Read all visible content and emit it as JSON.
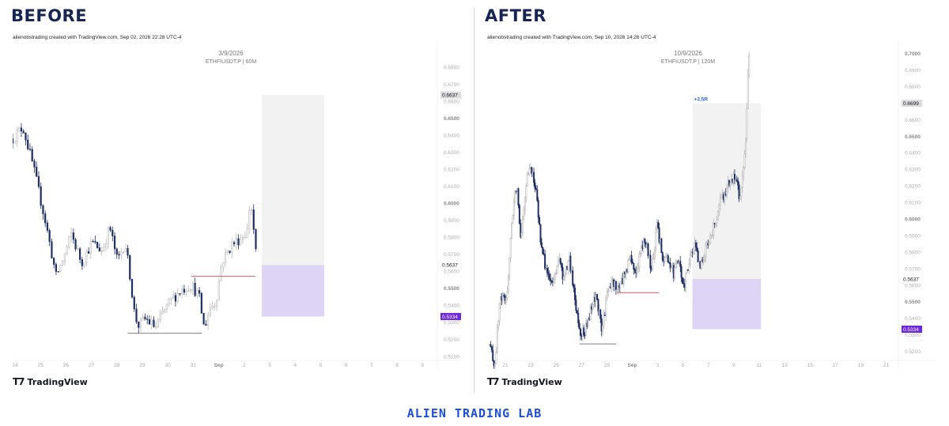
{
  "before": {
    "heading": "BEFORE",
    "credit": "alienobstrading created with TradingView.com, Sep 02, 2026 22:28 UTC-4",
    "brand": "TradingView"
  },
  "after": {
    "heading": "AFTER",
    "credit": "alienobstrading created with TradingView.com, Sep 10, 2026 14:26 UTC-4",
    "brand": "TradingView"
  },
  "footer": "ALIEN TRADING LAB",
  "colors": {
    "up": "#b8b8b8",
    "down": "#1e2f63",
    "profit_zone": "#e8e8e8",
    "stop_zone": "#d8cdf4",
    "entry_line": "#e05a5a",
    "stop_label": "#6d28d9",
    "heading": "#172554",
    "footer": "#1d4ed8"
  },
  "chart_data": [
    {
      "type": "candlestick",
      "title": "3/9/2026",
      "subtitle": "ETHFIUSDT.P | 60M",
      "x_ticks": [
        "24",
        "25",
        "26",
        "27",
        "28",
        "29",
        "30",
        "31",
        "Sep",
        "2",
        "3",
        "4",
        "5",
        "6",
        "7",
        "8",
        "9"
      ],
      "y_ticks": [
        "0.6800",
        "0.6700",
        "0.6600",
        "0.6500",
        "0.6400",
        "0.6300",
        "0.6200",
        "0.6100",
        "0.6000",
        "0.5900",
        "0.5800",
        "0.5700",
        "0.5600",
        "0.5500",
        "0.5400",
        "0.5300",
        "0.5200",
        "0.5100"
      ],
      "ylim": [
        0.5085,
        0.6935
      ],
      "price_labels": [
        {
          "text": "0.6637",
          "value": 0.6637,
          "style": "gray"
        },
        {
          "text": "0.5637",
          "value": 0.5637,
          "style": "plain"
        },
        {
          "text": "0.5334",
          "value": 0.5334,
          "style": "purple"
        }
      ],
      "position": {
        "entry": 0.5637,
        "target": 0.6637,
        "stop": 0.5334,
        "start_day": 9.75,
        "end_day": 12.2
      },
      "entry_line": {
        "start_day": 7.0,
        "end_day": 9.5,
        "value": 0.557
      },
      "range_line": {
        "start_day": 4.5,
        "end_day": 7.4,
        "value": 0.5235
      },
      "last_day": 9.6,
      "price_points": [
        [
          0.0,
          0.638
        ],
        [
          0.4,
          0.645
        ],
        [
          0.8,
          0.622
        ],
        [
          1.3,
          0.588
        ],
        [
          1.7,
          0.557
        ],
        [
          2.0,
          0.568
        ],
        [
          2.3,
          0.582
        ],
        [
          2.7,
          0.565
        ],
        [
          3.1,
          0.577
        ],
        [
          3.5,
          0.572
        ],
        [
          3.8,
          0.586
        ],
        [
          4.1,
          0.566
        ],
        [
          4.4,
          0.577
        ],
        [
          4.6,
          0.557
        ],
        [
          4.75,
          0.537
        ],
        [
          4.9,
          0.528
        ],
        [
          5.2,
          0.532
        ],
        [
          5.6,
          0.527
        ],
        [
          5.9,
          0.536
        ],
        [
          6.2,
          0.543
        ],
        [
          6.6,
          0.549
        ],
        [
          7.0,
          0.552
        ],
        [
          7.3,
          0.545
        ],
        [
          7.5,
          0.526
        ],
        [
          7.7,
          0.538
        ],
        [
          7.95,
          0.542
        ],
        [
          8.2,
          0.566
        ],
        [
          8.6,
          0.576
        ],
        [
          8.9,
          0.579
        ],
        [
          9.2,
          0.584
        ],
        [
          9.3,
          0.604
        ],
        [
          9.45,
          0.582
        ],
        [
          9.7,
          0.542
        ],
        [
          9.85,
          0.556
        ],
        [
          10.0,
          0.566
        ]
      ]
    },
    {
      "type": "candlestick",
      "title": "10/9/2026",
      "subtitle": "ETHFIUSDT.P | 120M",
      "x_ticks": [
        "21",
        "23",
        "25",
        "27",
        "29",
        "Sep",
        "3",
        "5",
        "7",
        "9",
        "11",
        "13",
        "15",
        "17",
        "19",
        "21"
      ],
      "y_ticks": [
        "0.7000",
        "0.6900",
        "0.6800",
        "0.6700",
        "0.6600",
        "0.6500",
        "0.6400",
        "0.6300",
        "0.6200",
        "0.6100",
        "0.6000",
        "0.5900",
        "0.5800",
        "0.5700",
        "0.5600",
        "0.5500",
        "0.5400",
        "0.5300",
        "0.5200"
      ],
      "ylim": [
        0.5155,
        0.7055
      ],
      "price_labels": [
        {
          "text": "0.6699",
          "value": 0.6699,
          "style": "gray"
        },
        {
          "text": "0.5637",
          "value": 0.5637,
          "style": "plain"
        },
        {
          "text": "0.5334",
          "value": 0.5334,
          "style": "purple"
        }
      ],
      "annotation": "+3,5R",
      "position": {
        "entry": 0.5637,
        "target": 0.6699,
        "stop": 0.5334,
        "start_day": 15.55,
        "end_day": 20.8
      },
      "entry_line": {
        "start_day": 9.8,
        "end_day": 13.0,
        "value": 0.5555
      },
      "range_line": {
        "start_day": 6.9,
        "end_day": 9.7,
        "value": 0.5245
      },
      "last_day": 19.9,
      "price_points": [
        [
          0.0,
          0.524
        ],
        [
          0.4,
          0.511
        ],
        [
          0.8,
          0.552
        ],
        [
          1.3,
          0.551
        ],
        [
          1.8,
          0.606
        ],
        [
          2.1,
          0.623
        ],
        [
          2.4,
          0.588
        ],
        [
          2.8,
          0.622
        ],
        [
          3.2,
          0.632
        ],
        [
          3.6,
          0.614
        ],
        [
          4.0,
          0.581
        ],
        [
          4.4,
          0.568
        ],
        [
          4.8,
          0.559
        ],
        [
          5.3,
          0.576
        ],
        [
          5.7,
          0.563
        ],
        [
          6.1,
          0.576
        ],
        [
          6.6,
          0.549
        ],
        [
          6.9,
          0.533
        ],
        [
          7.3,
          0.531
        ],
        [
          7.7,
          0.543
        ],
        [
          8.2,
          0.555
        ],
        [
          8.6,
          0.531
        ],
        [
          9.0,
          0.554
        ],
        [
          9.4,
          0.562
        ],
        [
          9.9,
          0.558
        ],
        [
          10.3,
          0.566
        ],
        [
          10.8,
          0.577
        ],
        [
          11.2,
          0.567
        ],
        [
          11.6,
          0.581
        ],
        [
          12.0,
          0.588
        ],
        [
          12.4,
          0.566
        ],
        [
          12.8,
          0.596
        ],
        [
          13.3,
          0.577
        ],
        [
          13.7,
          0.576
        ],
        [
          14.1,
          0.567
        ],
        [
          14.5,
          0.574
        ],
        [
          14.9,
          0.558
        ],
        [
          15.3,
          0.575
        ],
        [
          15.7,
          0.584
        ],
        [
          16.1,
          0.571
        ],
        [
          16.5,
          0.579
        ],
        [
          16.9,
          0.591
        ],
        [
          17.3,
          0.596
        ],
        [
          17.7,
          0.611
        ],
        [
          18.1,
          0.616
        ],
        [
          18.5,
          0.626
        ],
        [
          18.9,
          0.623
        ],
        [
          19.2,
          0.611
        ],
        [
          19.4,
          0.629
        ],
        [
          19.6,
          0.642
        ],
        [
          19.75,
          0.676
        ],
        [
          19.9,
          0.703
        ]
      ]
    }
  ]
}
